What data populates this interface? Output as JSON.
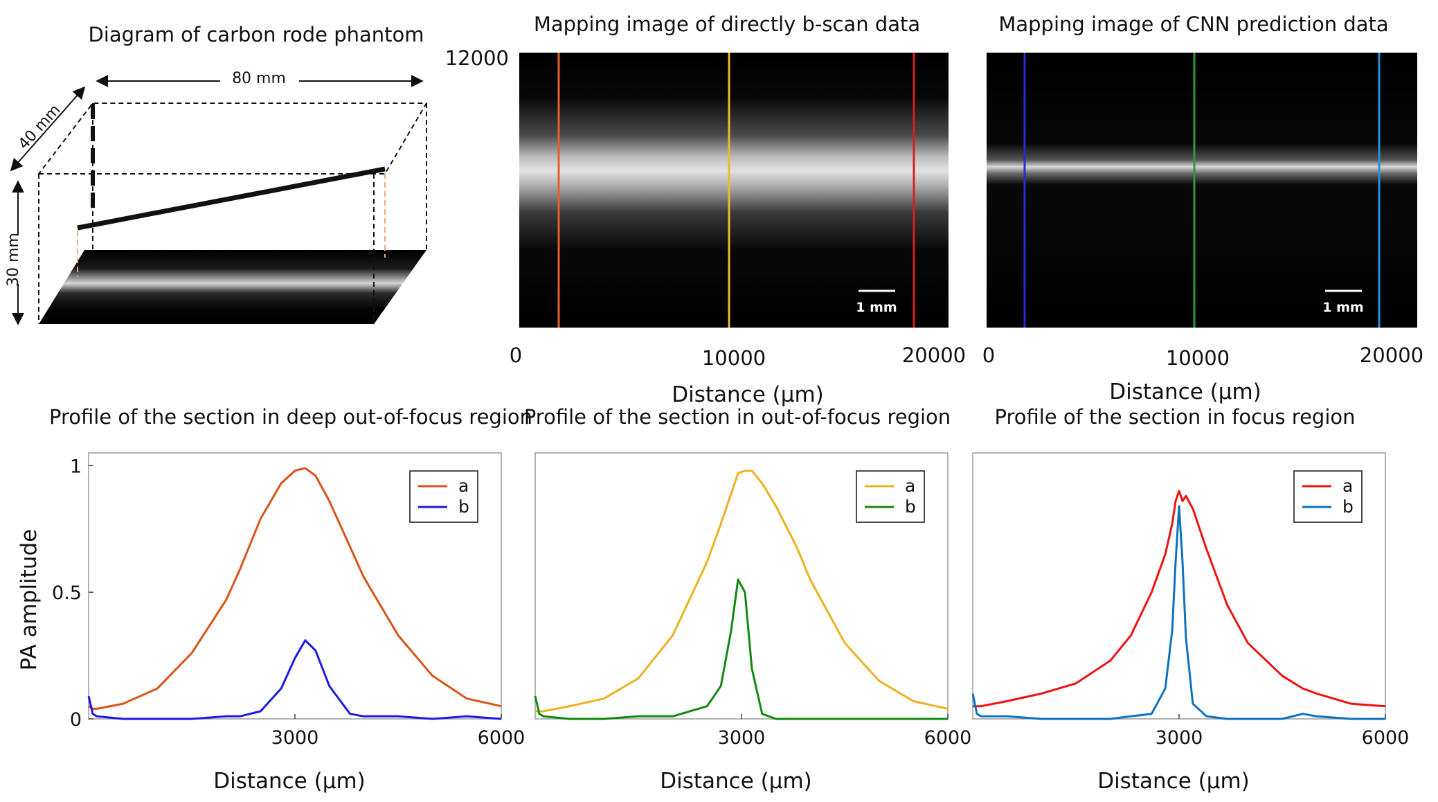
{
  "diagram": {
    "title": "Diagram of carbon rode phantom",
    "dim_length": "80 mm",
    "dim_depth": "40 mm",
    "dim_height": "30 mm"
  },
  "maps": {
    "left_title": "Mapping image of directly b-scan data",
    "right_title": "Mapping image of CNN prediction data",
    "y_top_tick": "12000",
    "x_ticks": [
      "0",
      "10000",
      "20000"
    ],
    "xlabel": "Distance (μm)",
    "scale_bar_label": "1 mm",
    "colors": {
      "left_lines": [
        "#e0612a",
        "#f2b731",
        "#d62020"
      ],
      "right_lines": [
        "#2a2ad0",
        "#2a9a3a",
        "#2a8fd8"
      ]
    }
  },
  "chart_data": [
    {
      "type": "line",
      "title": "Profile of the section in deep out-of-focus region",
      "xlabel": "Distance (μm)",
      "ylabel": "PA amplitude",
      "xlim": [
        0,
        6000
      ],
      "ylim": [
        0,
        1.05
      ],
      "xticks": [
        3000,
        6000
      ],
      "yticks": [
        0,
        0.5,
        1
      ],
      "legend_position": "top-right",
      "x": [
        0,
        60,
        120,
        500,
        1000,
        1500,
        2000,
        2200,
        2500,
        2800,
        3000,
        3150,
        3300,
        3500,
        3800,
        4000,
        4500,
        5000,
        5500,
        6000
      ],
      "series": [
        {
          "name": "a",
          "color": "#d95319",
          "values": [
            0.05,
            0.04,
            0.04,
            0.06,
            0.12,
            0.26,
            0.47,
            0.59,
            0.79,
            0.93,
            0.98,
            0.99,
            0.96,
            0.86,
            0.68,
            0.56,
            0.33,
            0.17,
            0.08,
            0.05
          ]
        },
        {
          "name": "b",
          "color": "#1a1ae6",
          "values": [
            0.09,
            0.02,
            0.01,
            0.0,
            0.0,
            0.0,
            0.01,
            0.01,
            0.03,
            0.12,
            0.24,
            0.31,
            0.27,
            0.13,
            0.02,
            0.01,
            0.01,
            0.0,
            0.01,
            0.0
          ]
        }
      ]
    },
    {
      "type": "line",
      "title": "Profile of the section in out-of-focus region",
      "xlabel": "Distance (μm)",
      "ylabel": "",
      "xlim": [
        0,
        6000
      ],
      "ylim": [
        0,
        1.05
      ],
      "xticks": [
        3000,
        6000
      ],
      "yticks": [],
      "legend_position": "top-right",
      "x": [
        0,
        60,
        120,
        500,
        1000,
        1500,
        2000,
        2500,
        2700,
        2850,
        2950,
        3050,
        3150,
        3300,
        3500,
        3800,
        4000,
        4500,
        5000,
        5500,
        6000
      ],
      "series": [
        {
          "name": "a",
          "color": "#edb120",
          "values": [
            0.03,
            0.03,
            0.03,
            0.05,
            0.08,
            0.16,
            0.33,
            0.62,
            0.77,
            0.89,
            0.97,
            0.98,
            0.98,
            0.93,
            0.84,
            0.68,
            0.55,
            0.3,
            0.15,
            0.07,
            0.04
          ]
        },
        {
          "name": "b",
          "color": "#118811",
          "values": [
            0.09,
            0.02,
            0.01,
            0.0,
            0.0,
            0.01,
            0.01,
            0.05,
            0.13,
            0.35,
            0.55,
            0.5,
            0.2,
            0.02,
            0.0,
            0.0,
            0.0,
            0.0,
            0.0,
            0.0,
            0.0
          ]
        }
      ]
    },
    {
      "type": "line",
      "title": "Profile of the section in focus region",
      "xlabel": "Distance (μm)",
      "ylabel": "",
      "xlim": [
        0,
        6000
      ],
      "ylim": [
        0,
        1.05
      ],
      "xticks": [
        3000,
        6000
      ],
      "yticks": [],
      "legend_position": "top-right",
      "x": [
        0,
        60,
        120,
        500,
        1000,
        1500,
        2000,
        2300,
        2600,
        2800,
        2900,
        2950,
        3000,
        3050,
        3100,
        3200,
        3400,
        3700,
        4000,
        4500,
        4800,
        5000,
        5500,
        6000
      ],
      "series": [
        {
          "name": "a",
          "color": "#ee1111",
          "values": [
            0.05,
            0.05,
            0.05,
            0.07,
            0.1,
            0.14,
            0.23,
            0.33,
            0.5,
            0.65,
            0.77,
            0.86,
            0.9,
            0.86,
            0.88,
            0.83,
            0.67,
            0.45,
            0.3,
            0.17,
            0.12,
            0.1,
            0.06,
            0.05
          ]
        },
        {
          "name": "b",
          "color": "#0d72bd",
          "values": [
            0.1,
            0.02,
            0.01,
            0.01,
            0.0,
            0.0,
            0.0,
            0.01,
            0.02,
            0.12,
            0.35,
            0.62,
            0.84,
            0.62,
            0.32,
            0.06,
            0.01,
            0.0,
            0.0,
            0.0,
            0.02,
            0.01,
            0.0,
            0.0
          ]
        }
      ]
    }
  ]
}
